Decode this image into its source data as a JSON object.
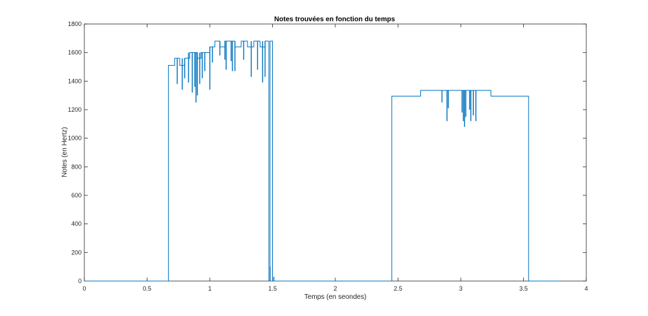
{
  "chart_data": {
    "type": "line",
    "title": "Notes trouvées en fonction du temps",
    "xlabel": "Temps (en seondes)",
    "ylabel": "Notes (en Hertz)",
    "xlim": [
      0,
      4
    ],
    "ylim": [
      0,
      1800
    ],
    "xticks": [
      0,
      0.5,
      1,
      1.5,
      2,
      2.5,
      3,
      3.5,
      4
    ],
    "xtick_labels": [
      "0",
      "0.5",
      "1",
      "1.5",
      "2",
      "2.5",
      "3",
      "3.5",
      "4"
    ],
    "yticks": [
      0,
      200,
      400,
      600,
      800,
      1000,
      1200,
      1400,
      1600,
      1800
    ],
    "ytick_labels": [
      "0",
      "200",
      "400",
      "600",
      "800",
      "1000",
      "1200",
      "1400",
      "1600",
      "1800"
    ],
    "grid": false,
    "series": [
      {
        "color": "#0072BD",
        "x": [
          0,
          0.67,
          0.67,
          0.72,
          0.72,
          0.76,
          0.76,
          0.8,
          0.8,
          0.84,
          0.84,
          0.9,
          0.9,
          0.93,
          0.93,
          1.0,
          1.0,
          1.04,
          1.04,
          1.08,
          1.08,
          1.12,
          1.12,
          1.2,
          1.2,
          1.25,
          1.25,
          1.3,
          1.3,
          1.35,
          1.35,
          1.4,
          1.4,
          1.44,
          1.44,
          1.47,
          1.47,
          1.48,
          1.48,
          1.5,
          1.5,
          1.52,
          1.52,
          2.45,
          2.45,
          2.68,
          2.68,
          3.24,
          3.24,
          3.54,
          3.54,
          3.78
        ],
        "y": [
          0,
          0,
          1510,
          1510,
          1560,
          1560,
          1510,
          1510,
          1560,
          1560,
          1600,
          1600,
          1560,
          1560,
          1600,
          1600,
          1640,
          1640,
          1680,
          1680,
          1640,
          1640,
          1680,
          1680,
          1640,
          1640,
          1680,
          1680,
          1640,
          1640,
          1680,
          1680,
          1640,
          1640,
          1680,
          1680,
          0,
          0,
          1680,
          1680,
          0,
          0,
          0,
          0,
          1295,
          1295,
          1335,
          1335,
          1295,
          1295,
          0,
          0
        ]
      }
    ],
    "spikes": [
      {
        "x": 0.74,
        "y_top": 1560,
        "y_bottom": 1380
      },
      {
        "x": 0.78,
        "y_top": 1560,
        "y_bottom": 1340
      },
      {
        "x": 0.8,
        "y_top": 1560,
        "y_bottom": 1420
      },
      {
        "x": 0.83,
        "y_top": 1600,
        "y_bottom": 1390
      },
      {
        "x": 0.86,
        "y_top": 1600,
        "y_bottom": 1320
      },
      {
        "x": 0.88,
        "y_top": 1600,
        "y_bottom": 1360
      },
      {
        "x": 0.89,
        "y_top": 1600,
        "y_bottom": 1250
      },
      {
        "x": 0.9,
        "y_top": 1600,
        "y_bottom": 1300
      },
      {
        "x": 0.92,
        "y_top": 1600,
        "y_bottom": 1380
      },
      {
        "x": 0.94,
        "y_top": 1600,
        "y_bottom": 1420
      },
      {
        "x": 0.96,
        "y_top": 1600,
        "y_bottom": 1470
      },
      {
        "x": 1.0,
        "y_top": 1640,
        "y_bottom": 1340
      },
      {
        "x": 1.02,
        "y_top": 1640,
        "y_bottom": 1530
      },
      {
        "x": 1.08,
        "y_top": 1680,
        "y_bottom": 1580
      },
      {
        "x": 1.12,
        "y_top": 1680,
        "y_bottom": 1550
      },
      {
        "x": 1.13,
        "y_top": 1680,
        "y_bottom": 1480
      },
      {
        "x": 1.17,
        "y_top": 1680,
        "y_bottom": 1540
      },
      {
        "x": 1.18,
        "y_top": 1680,
        "y_bottom": 1470
      },
      {
        "x": 1.2,
        "y_top": 1680,
        "y_bottom": 1470
      },
      {
        "x": 1.27,
        "y_top": 1680,
        "y_bottom": 1550
      },
      {
        "x": 1.33,
        "y_top": 1680,
        "y_bottom": 1430
      },
      {
        "x": 1.38,
        "y_top": 1680,
        "y_bottom": 1480
      },
      {
        "x": 1.42,
        "y_top": 1680,
        "y_bottom": 1390
      },
      {
        "x": 1.44,
        "y_top": 1680,
        "y_bottom": 1430
      },
      {
        "x": 1.48,
        "y_top": 100,
        "y_bottom": 0
      },
      {
        "x": 1.51,
        "y_top": 30,
        "y_bottom": 0
      },
      {
        "x": 2.85,
        "y_top": 1335,
        "y_bottom": 1250
      },
      {
        "x": 2.89,
        "y_top": 1335,
        "y_bottom": 1120
      },
      {
        "x": 2.9,
        "y_top": 1335,
        "y_bottom": 1210
      },
      {
        "x": 3.01,
        "y_top": 1335,
        "y_bottom": 1180
      },
      {
        "x": 3.02,
        "y_top": 1335,
        "y_bottom": 1120
      },
      {
        "x": 3.03,
        "y_top": 1335,
        "y_bottom": 1080
      },
      {
        "x": 3.04,
        "y_top": 1335,
        "y_bottom": 1150
      },
      {
        "x": 3.07,
        "y_top": 1335,
        "y_bottom": 1200
      },
      {
        "x": 3.08,
        "y_top": 1335,
        "y_bottom": 1120
      },
      {
        "x": 3.1,
        "y_top": 1335,
        "y_bottom": 1160
      },
      {
        "x": 3.12,
        "y_top": 1335,
        "y_bottom": 1120
      }
    ]
  }
}
